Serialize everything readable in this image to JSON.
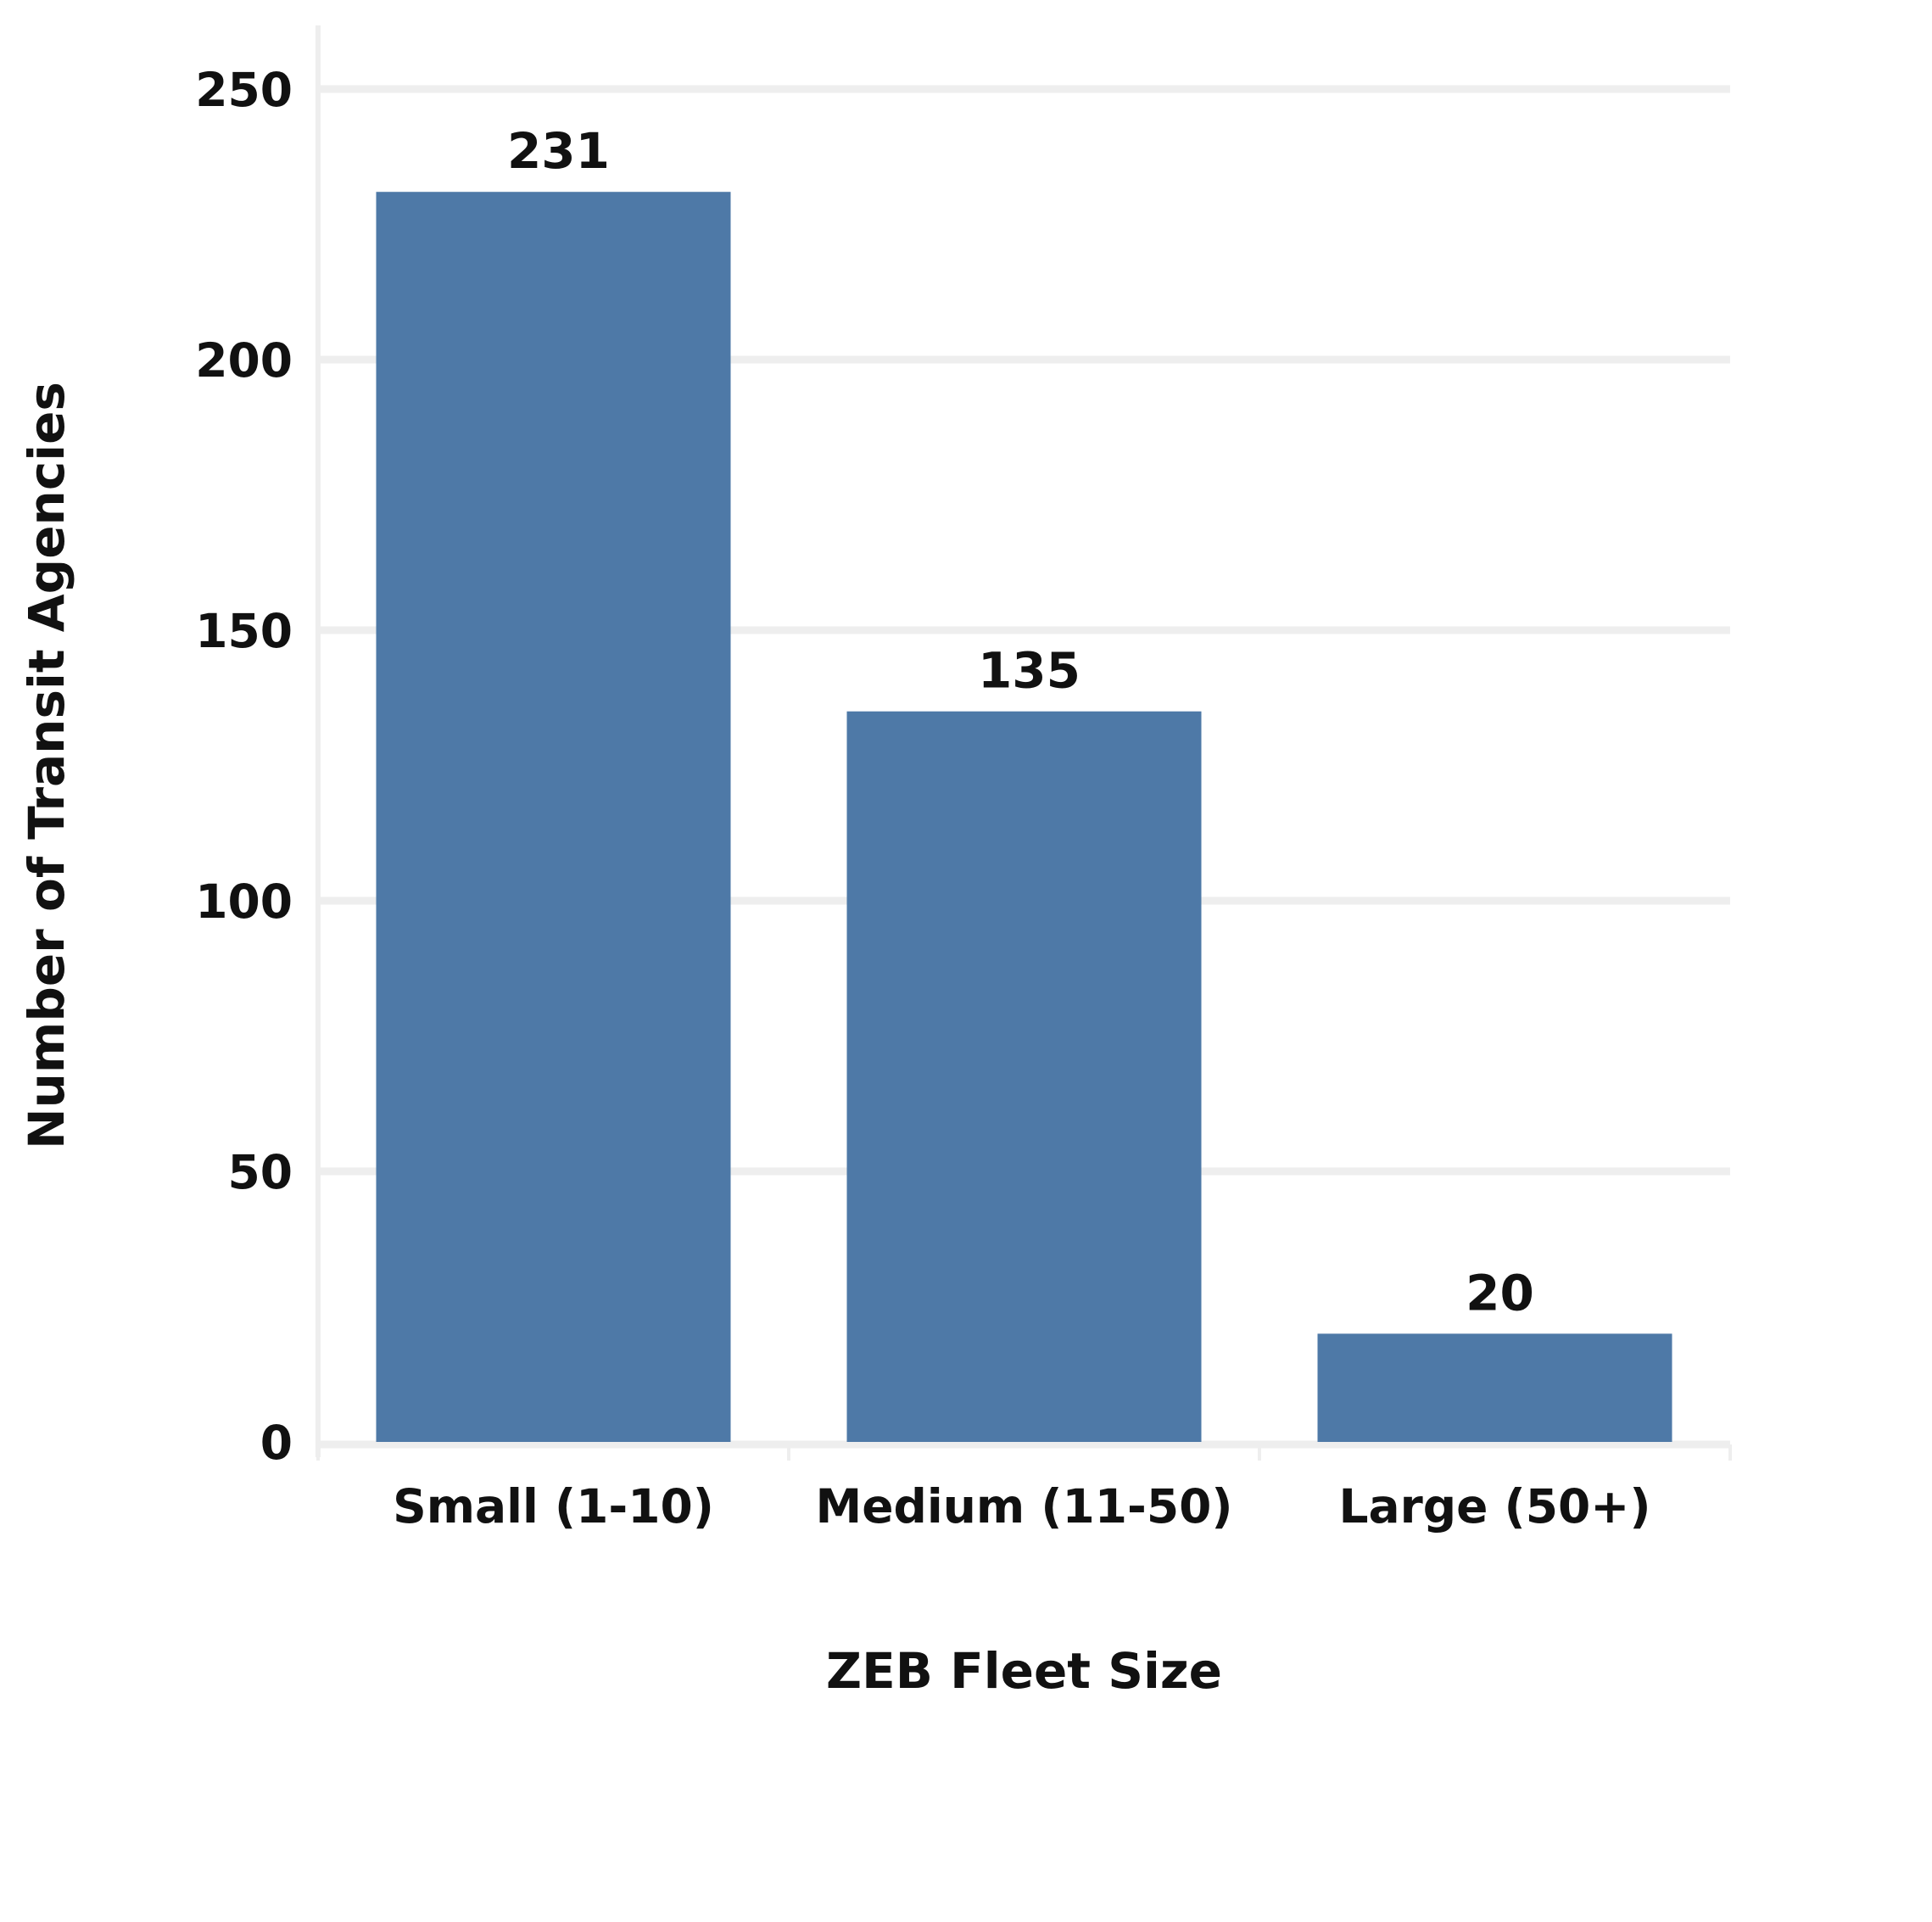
{
  "chart_data": {
    "type": "bar",
    "categories": [
      "Small (1-10)",
      "Medium (11-50)",
      "Large (50+)"
    ],
    "values": [
      231,
      135,
      20
    ],
    "data_labels": [
      "231",
      "135",
      "20"
    ],
    "title": "",
    "xlabel": "ZEB Fleet Size",
    "ylabel": "Number of Transit Agencies",
    "ylim": [
      0,
      250
    ],
    "yticks": [
      0,
      50,
      100,
      150,
      200,
      250
    ],
    "grid": true,
    "legend": "none",
    "colors": {
      "bar": "#4e79a7",
      "grid": "#eeeeee",
      "text": "#111111"
    }
  }
}
